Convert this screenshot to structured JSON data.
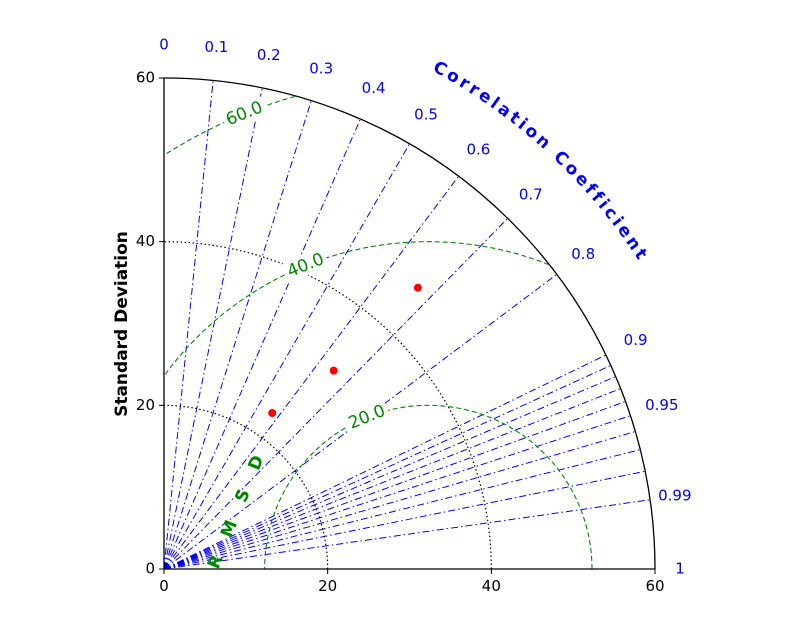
{
  "chart_data": {
    "type": "scatter",
    "subtype": "taylor-diagram",
    "title": "",
    "ylabel": "Standard Deviation",
    "correlation_label": "Correlation Coefficient",
    "rmsd_label": "RMSD",
    "std_range": [
      0,
      60
    ],
    "std_ticks": [
      "0",
      "20",
      "40",
      "60"
    ],
    "std_circles": [
      20,
      40,
      60
    ],
    "correlation_ticks": [
      {
        "value": 0,
        "label": "0"
      },
      {
        "value": 0.1,
        "label": "0.1"
      },
      {
        "value": 0.2,
        "label": "0.2"
      },
      {
        "value": 0.3,
        "label": "0.3"
      },
      {
        "value": 0.4,
        "label": "0.4"
      },
      {
        "value": 0.5,
        "label": "0.5"
      },
      {
        "value": 0.6,
        "label": "0.6"
      },
      {
        "value": 0.7,
        "label": "0.7"
      },
      {
        "value": 0.8,
        "label": "0.8"
      },
      {
        "value": 0.9,
        "label": "0.9"
      },
      {
        "value": 0.95,
        "label": "0.95"
      },
      {
        "value": 0.99,
        "label": "0.99"
      },
      {
        "value": 1,
        "label": "1"
      }
    ],
    "reference_std": 32.3,
    "rmsd_contours": [
      {
        "value": 20,
        "label": "20.0"
      },
      {
        "value": 40,
        "label": "40.0"
      },
      {
        "value": 60,
        "label": "60.0"
      }
    ],
    "points": [
      {
        "correlation": 0.57,
        "std": 23.2
      },
      {
        "correlation": 0.65,
        "std": 31.9
      },
      {
        "correlation": 0.67,
        "std": 46.3
      }
    ],
    "colors": {
      "correlation": "#0000ff",
      "rmsd": "#008800",
      "std_circles": "#000000",
      "points": "#ff0000"
    }
  }
}
